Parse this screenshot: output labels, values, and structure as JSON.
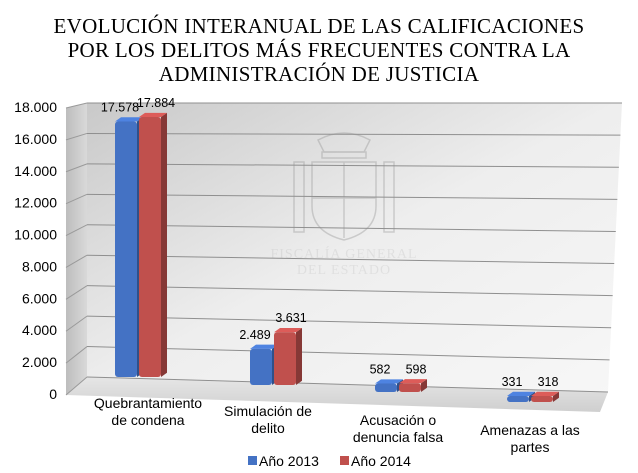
{
  "chart_data": {
    "type": "bar",
    "title_lines": [
      "EVOLUCIÓN INTERANUAL DE LAS CALIFICACIONES",
      "POR LOS DELITOS MÁS FRECUENTES CONTRA LA",
      "ADMINISTRACIÓN DE JUSTICIA"
    ],
    "categories": [
      [
        "Quebrantamiento",
        "de condena"
      ],
      [
        "Simulación de",
        "delito"
      ],
      [
        "Acusación o",
        "denuncia falsa"
      ],
      [
        "Amenazas a las",
        "partes"
      ]
    ],
    "series": [
      {
        "name": "Año 2013",
        "values": [
          17578,
          2489,
          582,
          331
        ],
        "labels": [
          "17.578",
          "2.489",
          "582",
          "331"
        ],
        "color": "#4472c4"
      },
      {
        "name": "Año 2014",
        "values": [
          17884,
          3631,
          598,
          318
        ],
        "labels": [
          "17.884",
          "3.631",
          "598",
          "318"
        ],
        "color": "#c0504d"
      }
    ],
    "ylim": [
      0,
      18000
    ],
    "yticks": [
      0,
      2000,
      4000,
      6000,
      8000,
      10000,
      12000,
      14000,
      16000,
      18000
    ],
    "ytick_labels": [
      "0",
      "2.000",
      "4.000",
      "6.000",
      "8.000",
      "10.000",
      "12.000",
      "14.000",
      "16.000",
      "18.000"
    ],
    "grid": true,
    "legend_position": "bottom",
    "xlabel": "",
    "ylabel": "",
    "watermark": [
      "FISCALÍA GENERAL",
      "DEL ESTADO"
    ]
  }
}
